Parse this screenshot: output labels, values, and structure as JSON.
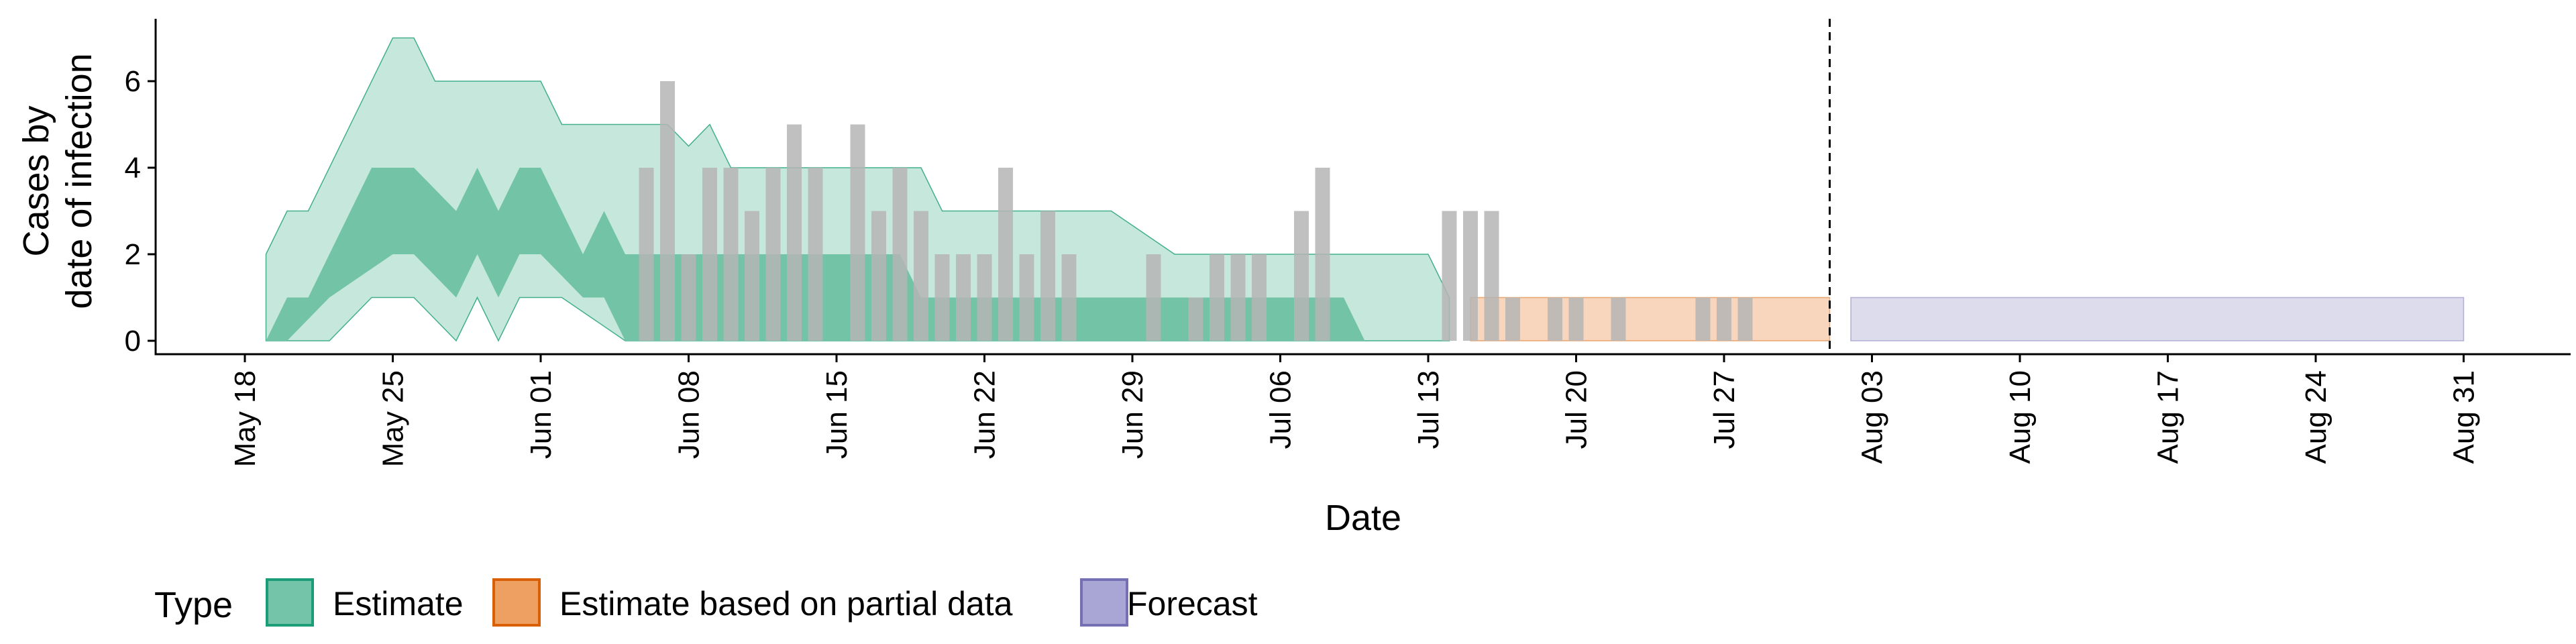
{
  "chart_data": {
    "type": "bar",
    "xlabel": "Date",
    "ylabel_lines": [
      "Cases by",
      "date of infection"
    ],
    "ylim": [
      0,
      7.3
    ],
    "y_ticks": [
      0,
      2,
      4,
      6
    ],
    "x_ticks": [
      {
        "date": "2020-05-18",
        "label": "May 18"
      },
      {
        "date": "2020-05-25",
        "label": "May 25"
      },
      {
        "date": "2020-06-01",
        "label": "Jun 01"
      },
      {
        "date": "2020-06-08",
        "label": "Jun 08"
      },
      {
        "date": "2020-06-15",
        "label": "Jun 15"
      },
      {
        "date": "2020-06-22",
        "label": "Jun 22"
      },
      {
        "date": "2020-06-29",
        "label": "Jun 29"
      },
      {
        "date": "2020-07-06",
        "label": "Jul 06"
      },
      {
        "date": "2020-07-13",
        "label": "Jul 13"
      },
      {
        "date": "2020-07-20",
        "label": "Jul 20"
      },
      {
        "date": "2020-07-27",
        "label": "Jul 27"
      },
      {
        "date": "2020-08-03",
        "label": "Aug 03"
      },
      {
        "date": "2020-08-10",
        "label": "Aug 10"
      },
      {
        "date": "2020-08-17",
        "label": "Aug 17"
      },
      {
        "date": "2020-08-24",
        "label": "Aug 24"
      },
      {
        "date": "2020-08-31",
        "label": "Aug 31"
      }
    ],
    "forecast_start": "2020-08-01",
    "observed_cases": [
      {
        "date": "2020-06-06",
        "value": 4
      },
      {
        "date": "2020-06-07",
        "value": 6
      },
      {
        "date": "2020-06-08",
        "value": 2
      },
      {
        "date": "2020-06-09",
        "value": 4
      },
      {
        "date": "2020-06-10",
        "value": 4
      },
      {
        "date": "2020-06-11",
        "value": 3
      },
      {
        "date": "2020-06-12",
        "value": 4
      },
      {
        "date": "2020-06-13",
        "value": 5
      },
      {
        "date": "2020-06-14",
        "value": 4
      },
      {
        "date": "2020-06-16",
        "value": 5
      },
      {
        "date": "2020-06-17",
        "value": 3
      },
      {
        "date": "2020-06-18",
        "value": 4
      },
      {
        "date": "2020-06-19",
        "value": 3
      },
      {
        "date": "2020-06-20",
        "value": 2
      },
      {
        "date": "2020-06-21",
        "value": 2
      },
      {
        "date": "2020-06-22",
        "value": 2
      },
      {
        "date": "2020-06-23",
        "value": 4
      },
      {
        "date": "2020-06-24",
        "value": 2
      },
      {
        "date": "2020-06-25",
        "value": 3
      },
      {
        "date": "2020-06-26",
        "value": 2
      },
      {
        "date": "2020-06-30",
        "value": 2
      },
      {
        "date": "2020-07-02",
        "value": 1
      },
      {
        "date": "2020-07-03",
        "value": 2
      },
      {
        "date": "2020-07-04",
        "value": 2
      },
      {
        "date": "2020-07-05",
        "value": 2
      },
      {
        "date": "2020-07-07",
        "value": 3
      },
      {
        "date": "2020-07-08",
        "value": 4
      },
      {
        "date": "2020-07-14",
        "value": 3
      },
      {
        "date": "2020-07-15",
        "value": 3
      },
      {
        "date": "2020-07-16",
        "value": 3
      },
      {
        "date": "2020-07-17",
        "value": 1
      },
      {
        "date": "2020-07-19",
        "value": 1
      },
      {
        "date": "2020-07-20",
        "value": 1
      },
      {
        "date": "2020-07-22",
        "value": 1
      },
      {
        "date": "2020-07-26",
        "value": 1
      },
      {
        "date": "2020-07-27",
        "value": 1
      },
      {
        "date": "2020-07-28",
        "value": 1
      }
    ],
    "estimate": {
      "outer_upper": [
        {
          "date": "2020-05-19",
          "value": 2
        },
        {
          "date": "2020-05-20",
          "value": 3
        },
        {
          "date": "2020-05-21",
          "value": 3
        },
        {
          "date": "2020-05-25",
          "value": 7
        },
        {
          "date": "2020-05-26",
          "value": 7
        },
        {
          "date": "2020-05-27",
          "value": 6
        },
        {
          "date": "2020-06-01",
          "value": 6
        },
        {
          "date": "2020-06-02",
          "value": 5
        },
        {
          "date": "2020-06-07",
          "value": 5
        },
        {
          "date": "2020-06-08",
          "value": 4.5
        },
        {
          "date": "2020-06-09",
          "value": 5
        },
        {
          "date": "2020-06-10",
          "value": 4
        },
        {
          "date": "2020-06-19",
          "value": 4
        },
        {
          "date": "2020-06-20",
          "value": 3
        },
        {
          "date": "2020-06-27",
          "value": 3
        },
        {
          "date": "2020-06-28",
          "value": 3
        },
        {
          "date": "2020-07-01",
          "value": 2
        },
        {
          "date": "2020-07-13",
          "value": 2
        },
        {
          "date": "2020-07-14",
          "value": 1
        }
      ],
      "outer_lower": [
        {
          "date": "2020-05-19",
          "value": 0
        },
        {
          "date": "2020-05-22",
          "value": 0
        },
        {
          "date": "2020-05-24",
          "value": 1
        },
        {
          "date": "2020-05-26",
          "value": 1
        },
        {
          "date": "2020-05-28",
          "value": 0
        },
        {
          "date": "2020-05-29",
          "value": 1
        },
        {
          "date": "2020-05-30",
          "value": 0
        },
        {
          "date": "2020-05-31",
          "value": 1
        },
        {
          "date": "2020-06-02",
          "value": 1
        },
        {
          "date": "2020-06-05",
          "value": 0
        },
        {
          "date": "2020-07-14",
          "value": 0
        }
      ],
      "inner_upper": [
        {
          "date": "2020-05-19",
          "value": 0
        },
        {
          "date": "2020-05-20",
          "value": 1
        },
        {
          "date": "2020-05-21",
          "value": 1
        },
        {
          "date": "2020-05-24",
          "value": 4
        },
        {
          "date": "2020-05-26",
          "value": 4
        },
        {
          "date": "2020-05-28",
          "value": 3
        },
        {
          "date": "2020-05-29",
          "value": 4
        },
        {
          "date": "2020-05-30",
          "value": 3
        },
        {
          "date": "2020-05-31",
          "value": 4
        },
        {
          "date": "2020-06-01",
          "value": 4
        },
        {
          "date": "2020-06-03",
          "value": 2
        },
        {
          "date": "2020-06-04",
          "value": 3
        },
        {
          "date": "2020-06-05",
          "value": 2
        },
        {
          "date": "2020-06-18",
          "value": 2
        },
        {
          "date": "2020-06-19",
          "value": 1
        },
        {
          "date": "2020-07-09",
          "value": 1
        },
        {
          "date": "2020-07-10",
          "value": 0
        }
      ],
      "inner_lower": [
        {
          "date": "2020-05-19",
          "value": 0
        },
        {
          "date": "2020-05-20",
          "value": 0
        },
        {
          "date": "2020-05-22",
          "value": 1
        },
        {
          "date": "2020-05-25",
          "value": 2
        },
        {
          "date": "2020-05-26",
          "value": 2
        },
        {
          "date": "2020-05-28",
          "value": 1
        },
        {
          "date": "2020-05-29",
          "value": 2
        },
        {
          "date": "2020-05-30",
          "value": 1
        },
        {
          "date": "2020-05-31",
          "value": 2
        },
        {
          "date": "2020-06-01",
          "value": 2
        },
        {
          "date": "2020-06-03",
          "value": 1
        },
        {
          "date": "2020-06-04",
          "value": 1
        },
        {
          "date": "2020-06-05",
          "value": 0
        },
        {
          "date": "2020-07-10",
          "value": 0
        }
      ]
    },
    "partial_estimate": {
      "start": "2020-07-15",
      "end": "2020-08-01",
      "lower": 0,
      "upper": 1
    },
    "forecast": {
      "start": "2020-08-02",
      "end": "2020-08-31",
      "lower": 0,
      "upper": 1
    },
    "legend": {
      "title": "Type",
      "items": [
        {
          "label": "Estimate",
          "fill": "#74c4a9",
          "stroke": "#1b9e77"
        },
        {
          "label": "Estimate based on partial data",
          "fill": "#eea063",
          "stroke": "#d95f02"
        },
        {
          "label": "Forecast",
          "fill": "#a9a5d4",
          "stroke": "#7570b3"
        }
      ]
    },
    "colors": {
      "estimate_outer": "#c6e8dc",
      "estimate_inner": "#73c3a6",
      "estimate_line": "#1b9e77",
      "partial": "#f7d6bd",
      "forecast": "#dcdced",
      "bars": "#b5b5b5"
    }
  }
}
